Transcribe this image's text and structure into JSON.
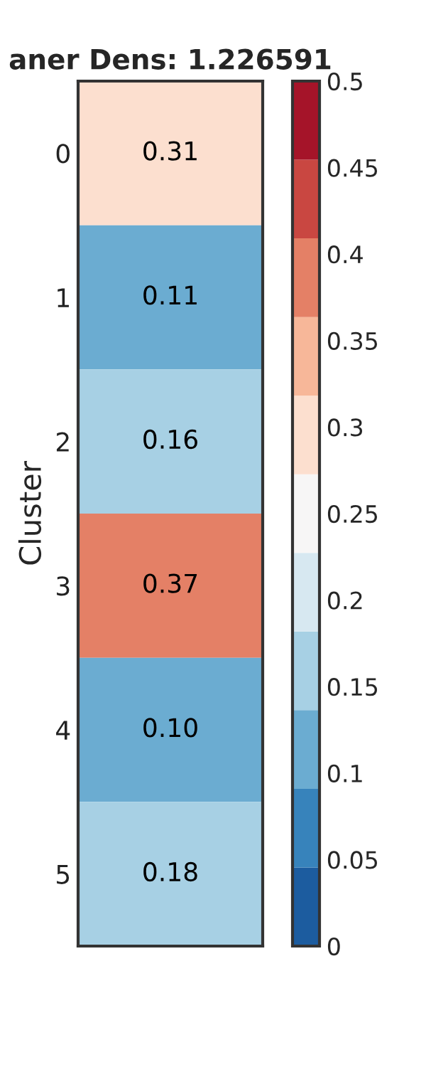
{
  "chart_data": {
    "type": "heatmap",
    "title": "aner Dens: 1.226591",
    "ylabel": "Cluster",
    "categories": [
      null
    ],
    "y_categories": [
      "0",
      "1",
      "2",
      "3",
      "4",
      "5"
    ],
    "cells": [
      [
        0.31
      ],
      [
        0.11
      ],
      [
        0.16
      ],
      [
        0.37
      ],
      [
        0.1
      ],
      [
        0.18
      ]
    ],
    "cell_labels": [
      [
        "0.31"
      ],
      [
        "0.11"
      ],
      [
        "0.16"
      ],
      [
        "0.37"
      ],
      [
        "0.10"
      ],
      [
        "0.18"
      ]
    ],
    "clim": [
      0,
      0.5
    ],
    "cticks": [
      0,
      0.05,
      0.1,
      0.15,
      0.2,
      0.25,
      0.3,
      0.35,
      0.4,
      0.45,
      0.5
    ]
  }
}
